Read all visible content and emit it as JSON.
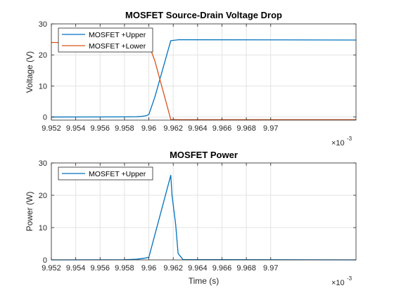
{
  "chart_data": [
    {
      "type": "line",
      "title": "MOSFET Source-Drain Voltage Drop",
      "xlabel": "",
      "ylabel": "Voltage (V)",
      "xlim": [
        0.009952,
        0.009977
      ],
      "ylim": [
        -1,
        30
      ],
      "x_ticks": [
        "9.952",
        "9.954",
        "9.956",
        "9.958",
        "9.96",
        "9.962",
        "9.964",
        "9.966",
        "9.968",
        "9.97"
      ],
      "y_ticks": [
        "0",
        "10",
        "20",
        "30"
      ],
      "x_exponent_base": "×10",
      "x_exponent_power": "-3",
      "grid": true,
      "legend": "top-left",
      "series": [
        {
          "name": "MOSFET +Upper",
          "color": "#0072BD",
          "x": [
            0.009952,
            0.009958,
            0.009959,
            0.0099595,
            0.0099598,
            0.00996,
            0.0099605,
            0.0099618,
            0.0099625,
            0.00997,
            0.009977
          ],
          "y": [
            0.0,
            0.05,
            0.1,
            0.25,
            0.45,
            0.8,
            6.5,
            24.6,
            24.9,
            24.85,
            24.8
          ]
        },
        {
          "name": "MOSFET +Lower",
          "color": "#D95319",
          "x": [
            0.009952,
            0.009958,
            0.009959,
            0.0099595,
            0.00996,
            0.0099605,
            0.0099618,
            0.0099625,
            0.009977
          ],
          "y": [
            24.0,
            23.9,
            23.75,
            23.6,
            23.3,
            18.0,
            -0.8,
            -0.85,
            -0.85
          ]
        }
      ]
    },
    {
      "type": "line",
      "title": "MOSFET Power",
      "xlabel": "Time (s)",
      "ylabel": "Power (W)",
      "xlim": [
        0.009952,
        0.009977
      ],
      "ylim": [
        0,
        30
      ],
      "x_ticks": [
        "9.952",
        "9.954",
        "9.956",
        "9.958",
        "9.96",
        "9.962",
        "9.964",
        "9.966",
        "9.968",
        "9.97"
      ],
      "y_ticks": [
        "0",
        "10",
        "20",
        "30"
      ],
      "x_exponent_base": "×10",
      "x_exponent_power": "-3",
      "grid": true,
      "legend": "top-left",
      "series": [
        {
          "name": "MOSFET +Upper",
          "color": "#0072BD",
          "x": [
            0.009952,
            0.009958,
            0.009959,
            0.0099596,
            0.00996,
            0.0099618,
            0.0099619,
            0.0099622,
            0.0099624,
            0.0099628,
            0.009977
          ],
          "y": [
            0.0,
            0.05,
            0.2,
            0.5,
            0.8,
            26.2,
            20.0,
            11.0,
            2.0,
            0.1,
            0.0
          ]
        }
      ]
    }
  ]
}
